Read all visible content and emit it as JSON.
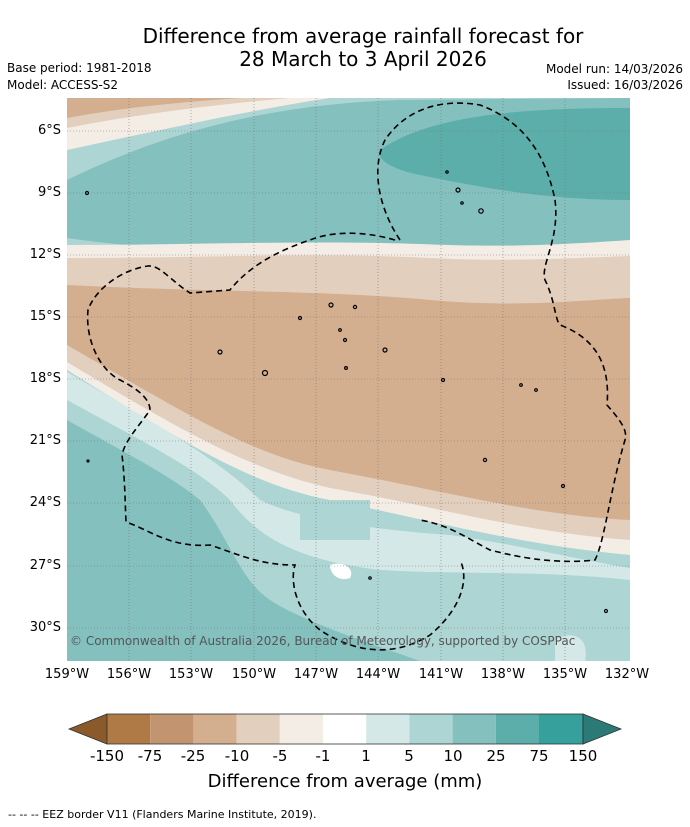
{
  "title": {
    "line1": "Difference from average rainfall forecast for",
    "line2": "28 March to 3 April 2026"
  },
  "meta": {
    "base_period": "Base period: 1981-2018",
    "model": "Model: ACCESS-S2",
    "model_run": "Model run: 14/03/2026",
    "issued": "Issued: 16/03/2026"
  },
  "map": {
    "lat_labels": [
      "6°S",
      "9°S",
      "12°S",
      "15°S",
      "18°S",
      "21°S",
      "24°S",
      "27°S",
      "30°S"
    ],
    "lon_labels": [
      "159°W",
      "156°W",
      "153°W",
      "150°W",
      "147°W",
      "144°W",
      "141°W",
      "138°W",
      "135°W",
      "132°W"
    ],
    "copyright": "© Commonwealth of Australia 2026, Bureau of Meteorology, supported by COSPPac"
  },
  "colorbar": {
    "title": "Difference from average (mm)",
    "ticks": [
      "-150",
      "-75",
      "-25",
      "-10",
      "-5",
      "-1",
      "1",
      "5",
      "10",
      "25",
      "75",
      "150"
    ],
    "colors": [
      "#8b5a2b",
      "#b07a47",
      "#c29570",
      "#d3ae8f",
      "#e2cfbd",
      "#f3ede6",
      "#ffffff",
      "#d4e9e7",
      "#acd5d3",
      "#84c0be",
      "#5caeab",
      "#36a19c",
      "#2c7a77"
    ]
  },
  "footnote": "-- -- -- EEZ border V11 (Flanders Marine Institute, 2019)."
}
